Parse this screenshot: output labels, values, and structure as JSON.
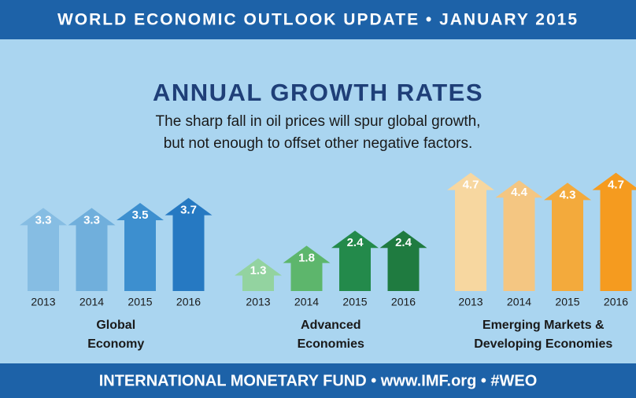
{
  "banner": "WORLD ECONOMIC OUTLOOK UPDATE • JANUARY 2015",
  "title": "ANNUAL GROWTH RATES",
  "subtitle": [
    "The sharp fall in oil prices will spur global growth,",
    "but not enough to offset other negative factors."
  ],
  "footer": "INTERNATIONAL MONETARY FUND • www.IMF.org  •  #WEO",
  "chart_data": [
    {
      "type": "bar",
      "title": [
        "Global",
        "Economy"
      ],
      "categories": [
        "2013",
        "2014",
        "2015",
        "2016"
      ],
      "values": [
        3.3,
        3.3,
        3.5,
        3.7
      ],
      "colors": [
        "#86bde3",
        "#70afdc",
        "#3d8fcf",
        "#2679c2"
      ]
    },
    {
      "type": "bar",
      "title": [
        "Advanced",
        "Economies"
      ],
      "categories": [
        "2013",
        "2014",
        "2015",
        "2016"
      ],
      "values": [
        1.3,
        1.8,
        2.4,
        2.4
      ],
      "colors": [
        "#93d3a0",
        "#5db66c",
        "#238a4b",
        "#1f7b40"
      ]
    },
    {
      "type": "bar",
      "title": [
        "Emerging Markets &",
        "Developing Economies"
      ],
      "categories": [
        "2013",
        "2014",
        "2015",
        "2016"
      ],
      "values": [
        4.7,
        4.4,
        4.3,
        4.7
      ],
      "colors": [
        "#f7d7a0",
        "#f4c682",
        "#f3aa3c",
        "#f59b1f"
      ]
    }
  ]
}
